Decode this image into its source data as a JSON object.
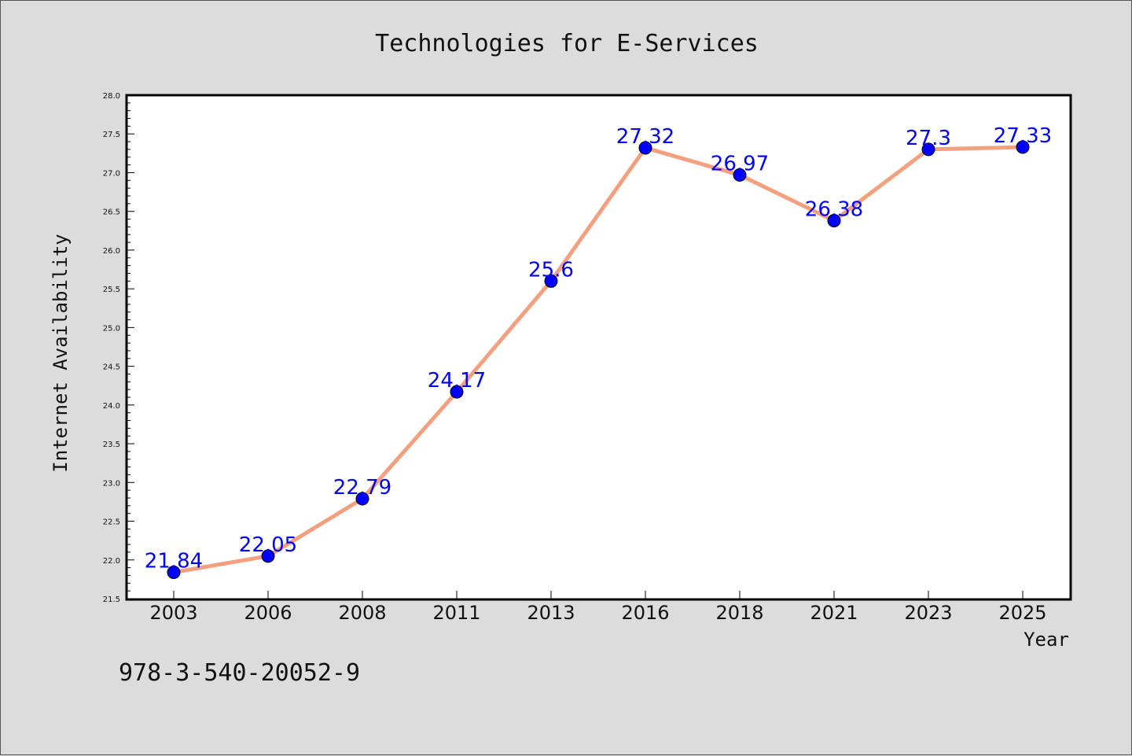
{
  "chart_data": {
    "type": "line",
    "title": "Technologies for E-Services",
    "xlabel": "Year",
    "ylabel": "Internet Availability",
    "categories": [
      "2003",
      "2006",
      "2008",
      "2011",
      "2013",
      "2016",
      "2018",
      "2021",
      "2023",
      "2025"
    ],
    "series": [
      {
        "values": [
          21.84,
          22.05,
          22.79,
          24.17,
          25.6,
          27.32,
          26.97,
          26.38,
          27.3,
          27.33
        ],
        "data_labels": [
          "21.84",
          "22.05",
          "22.79",
          "24.17",
          "25.6",
          "27.32",
          "26.97",
          "26.38",
          "27.3",
          "27.33"
        ],
        "line_color": "#f4a07e",
        "marker_color": "#0000ff"
      }
    ],
    "ylim": [
      21.5,
      28.0
    ],
    "yticks": [
      "21.5",
      "22.0",
      "22.5",
      "23.0",
      "23.5",
      "24.0",
      "24.5",
      "25.0",
      "25.5",
      "26.0",
      "26.5",
      "27.0",
      "27.5",
      "28.0"
    ],
    "grid": false,
    "legend": "none"
  },
  "footnote": "978-3-540-20052-9",
  "colors": {
    "background": "#dcdcdc",
    "plot_area": "#ffffff",
    "line": "#f4a07e",
    "marker": "#0000ff",
    "data_label": "#0000ff"
  }
}
